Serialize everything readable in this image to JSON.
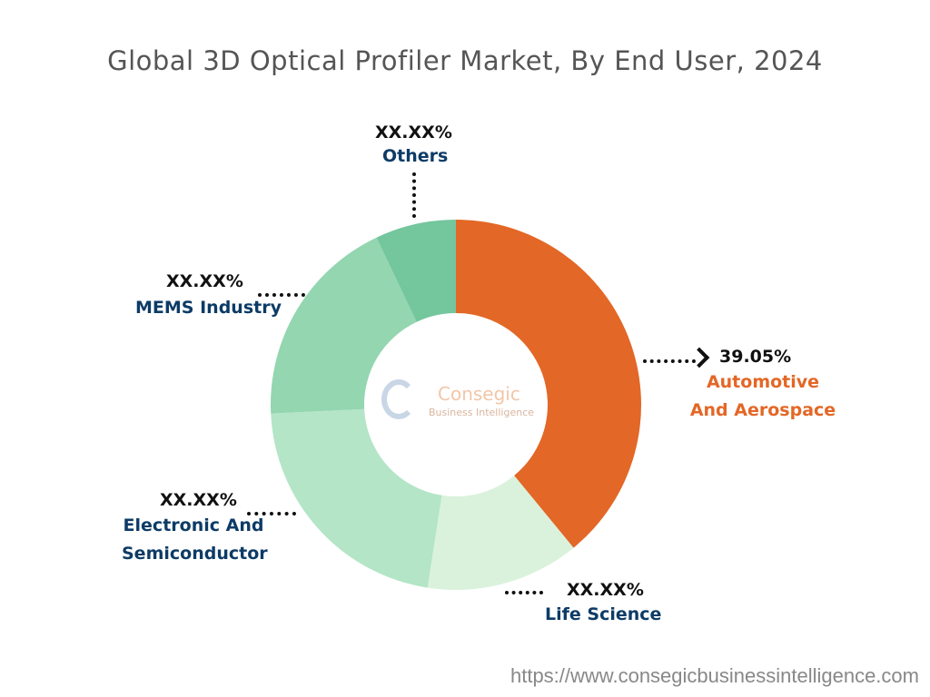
{
  "title": "Global 3D Optical Profiler Market, By End User, 2024",
  "url": "https://www.consegicbusinessintelligence.com",
  "logo": {
    "name": "Consegic",
    "tagline": "Business Intelligence"
  },
  "chart_data": {
    "type": "pie",
    "donut": true,
    "title": "Global 3D Optical Profiler Market, By End User, 2024",
    "categories": [
      "Automotive And Aerospace",
      "Life Science",
      "Electronic And Semiconductor",
      "MEMS Industry",
      "Others"
    ],
    "values": [
      39.05,
      13.4,
      21.8,
      18.7,
      7.05
    ],
    "labels": [
      "39.05%",
      "XX.XX%",
      "XX.XX%",
      "XX.XX%",
      "XX.XX%"
    ],
    "colors": [
      "#e36726",
      "#daf2dc",
      "#b3e5c6",
      "#93d6b0",
      "#74c69d"
    ]
  }
}
